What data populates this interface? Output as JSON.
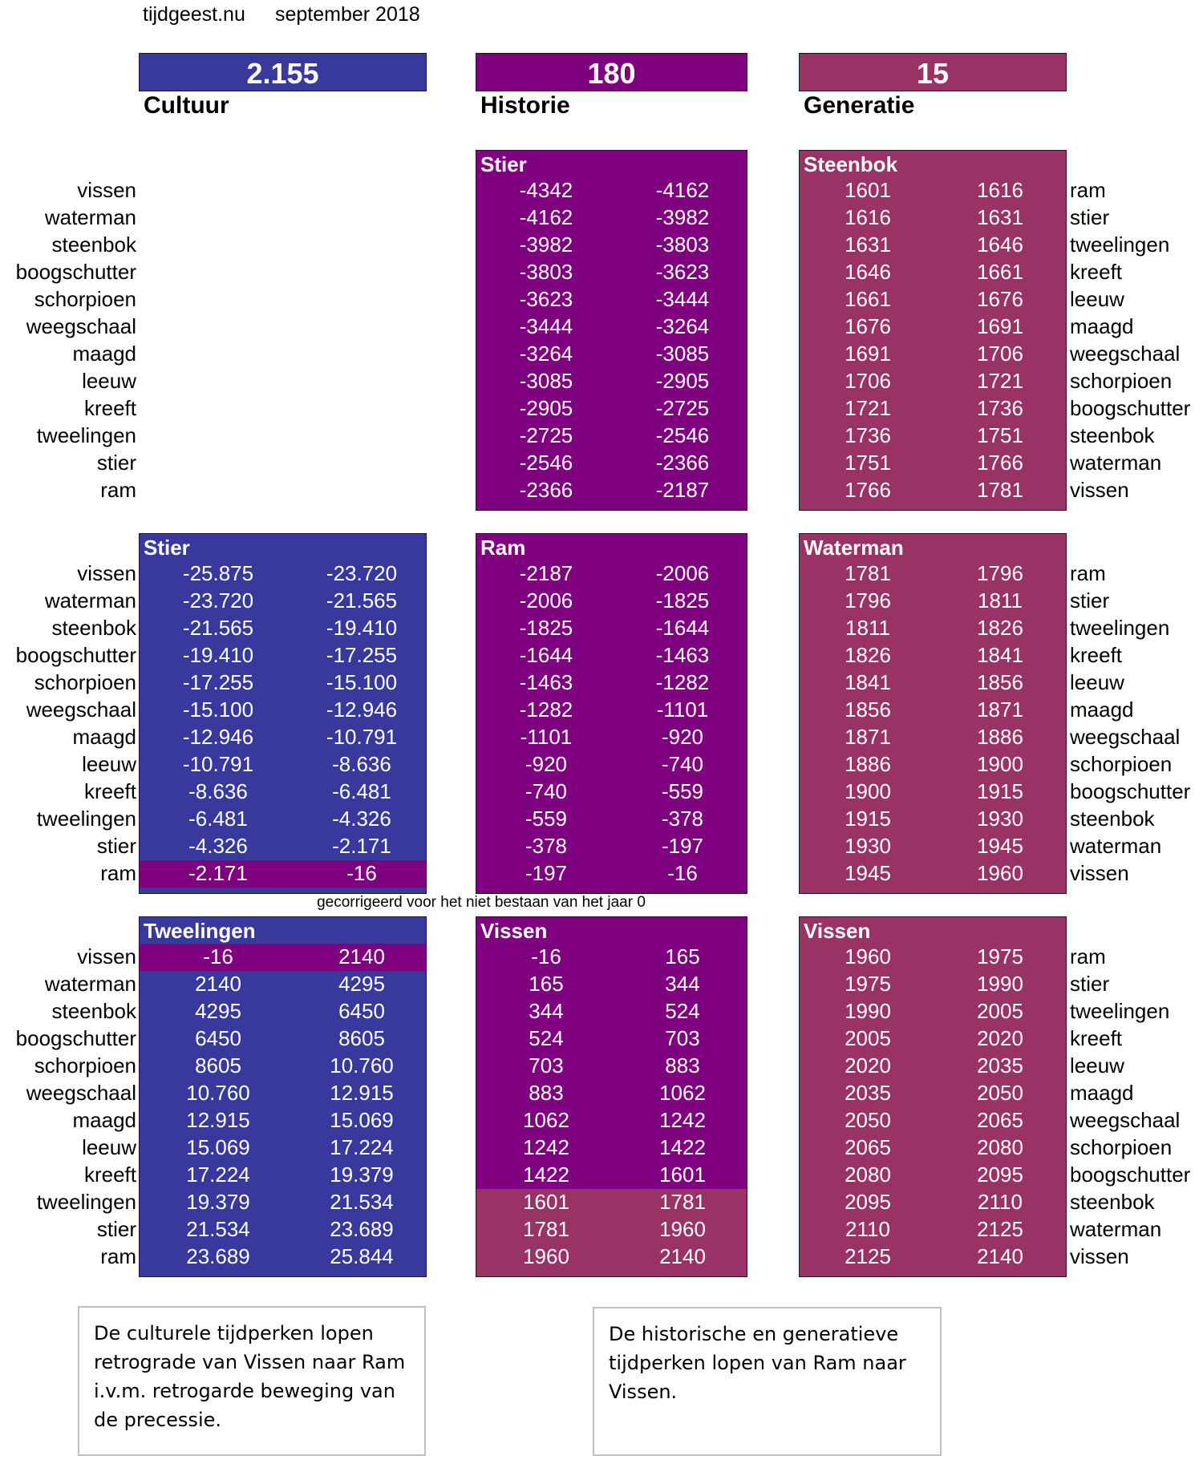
{
  "header": {
    "site": "tijdgeest.nu",
    "date": "september 2018"
  },
  "colors": {
    "cultuur": "#39399d",
    "historie": "#7f007f",
    "generatie": "#993366"
  },
  "summary": [
    {
      "value": "2.155",
      "label": "Cultuur"
    },
    {
      "value": "180",
      "label": "Historie"
    },
    {
      "value": "15",
      "label": "Generatie"
    }
  ],
  "left_labels": [
    "vissen",
    "waterman",
    "steenbok",
    "boogschutter",
    "schorpioen",
    "weegschaal",
    "maagd",
    "leeuw",
    "kreeft",
    "tweelingen",
    "stier",
    "ram"
  ],
  "right_labels": [
    "ram",
    "stier",
    "tweelingen",
    "kreeft",
    "leeuw",
    "maagd",
    "weegschaal",
    "schorpioen",
    "boogschutter",
    "steenbok",
    "waterman",
    "vissen"
  ],
  "blocks": [
    {
      "title": "Stier",
      "rows": [
        [
          "-4342",
          "-4162"
        ],
        [
          "-4162",
          "-3982"
        ],
        [
          "-3982",
          "-3803"
        ],
        [
          "-3803",
          "-3623"
        ],
        [
          "-3623",
          "-3444"
        ],
        [
          "-3444",
          "-3264"
        ],
        [
          "-3264",
          "-3085"
        ],
        [
          "-3085",
          "-2905"
        ],
        [
          "-2905",
          "-2725"
        ],
        [
          "-2725",
          "-2546"
        ],
        [
          "-2546",
          "-2366"
        ],
        [
          "-2366",
          "-2187"
        ]
      ]
    },
    {
      "title": "Steenbok",
      "rows": [
        [
          "1601",
          "1616"
        ],
        [
          "1616",
          "1631"
        ],
        [
          "1631",
          "1646"
        ],
        [
          "1646",
          "1661"
        ],
        [
          "1661",
          "1676"
        ],
        [
          "1676",
          "1691"
        ],
        [
          "1691",
          "1706"
        ],
        [
          "1706",
          "1721"
        ],
        [
          "1721",
          "1736"
        ],
        [
          "1736",
          "1751"
        ],
        [
          "1751",
          "1766"
        ],
        [
          "1766",
          "1781"
        ]
      ]
    },
    {
      "title": "Stier",
      "rows": [
        [
          "-25.875",
          "-23.720"
        ],
        [
          "-23.720",
          "-21.565"
        ],
        [
          "-21.565",
          "-19.410"
        ],
        [
          "-19.410",
          "-17.255"
        ],
        [
          "-17.255",
          "-15.100"
        ],
        [
          "-15.100",
          "-12.946"
        ],
        [
          "-12.946",
          "-10.791"
        ],
        [
          "-10.791",
          "-8.636"
        ],
        [
          "-8.636",
          "-6.481"
        ],
        [
          "-6.481",
          "-4.326"
        ],
        [
          "-4.326",
          "-2.171"
        ],
        [
          "-2.171",
          "-16"
        ]
      ]
    },
    {
      "title": "Ram",
      "rows": [
        [
          "-2187",
          "-2006"
        ],
        [
          "-2006",
          "-1825"
        ],
        [
          "-1825",
          "-1644"
        ],
        [
          "-1644",
          "-1463"
        ],
        [
          "-1463",
          "-1282"
        ],
        [
          "-1282",
          "-1101"
        ],
        [
          "-1101",
          "-920"
        ],
        [
          "-920",
          "-740"
        ],
        [
          "-740",
          "-559"
        ],
        [
          "-559",
          "-378"
        ],
        [
          "-378",
          "-197"
        ],
        [
          "-197",
          "-16"
        ]
      ]
    },
    {
      "title": "Waterman",
      "rows": [
        [
          "1781",
          "1796"
        ],
        [
          "1796",
          "1811"
        ],
        [
          "1811",
          "1826"
        ],
        [
          "1826",
          "1841"
        ],
        [
          "1841",
          "1856"
        ],
        [
          "1856",
          "1871"
        ],
        [
          "1871",
          "1886"
        ],
        [
          "1886",
          "1900"
        ],
        [
          "1900",
          "1915"
        ],
        [
          "1915",
          "1930"
        ],
        [
          "1930",
          "1945"
        ],
        [
          "1945",
          "1960"
        ]
      ]
    },
    {
      "title": "Tweelingen",
      "rows": [
        [
          "-16",
          "2140"
        ],
        [
          "2140",
          "4295"
        ],
        [
          "4295",
          "6450"
        ],
        [
          "6450",
          "8605"
        ],
        [
          "8605",
          "10.760"
        ],
        [
          "10.760",
          "12.915"
        ],
        [
          "12.915",
          "15.069"
        ],
        [
          "15.069",
          "17.224"
        ],
        [
          "17.224",
          "19.379"
        ],
        [
          "19.379",
          "21.534"
        ],
        [
          "21.534",
          "23.689"
        ],
        [
          "23.689",
          "25.844"
        ]
      ]
    },
    {
      "title": "Vissen",
      "rows": [
        [
          "-16",
          "165"
        ],
        [
          "165",
          "344"
        ],
        [
          "344",
          "524"
        ],
        [
          "524",
          "703"
        ],
        [
          "703",
          "883"
        ],
        [
          "883",
          "1062"
        ],
        [
          "1062",
          "1242"
        ],
        [
          "1242",
          "1422"
        ],
        [
          "1422",
          "1601"
        ],
        [
          "1601",
          "1781"
        ],
        [
          "1781",
          "1960"
        ],
        [
          "1960",
          "2140"
        ]
      ]
    },
    {
      "title": "Vissen",
      "rows": [
        [
          "1960",
          "1975"
        ],
        [
          "1975",
          "1990"
        ],
        [
          "1990",
          "2005"
        ],
        [
          "2005",
          "2020"
        ],
        [
          "2020",
          "2035"
        ],
        [
          "2035",
          "2050"
        ],
        [
          "2050",
          "2065"
        ],
        [
          "2065",
          "2080"
        ],
        [
          "2080",
          "2095"
        ],
        [
          "2095",
          "2110"
        ],
        [
          "2110",
          "2125"
        ],
        [
          "2125",
          "2140"
        ]
      ]
    }
  ],
  "correction_note": "gecorrigeerd voor het niet bestaan van het jaar 0",
  "notes": [
    "De culturele tijdperken lopen retrograde van Vissen naar Ram i.v.m. retrogarde beweging van de precessie.",
    "De historische en generatieve tijdperken lopen van Ram naar Vissen."
  ]
}
